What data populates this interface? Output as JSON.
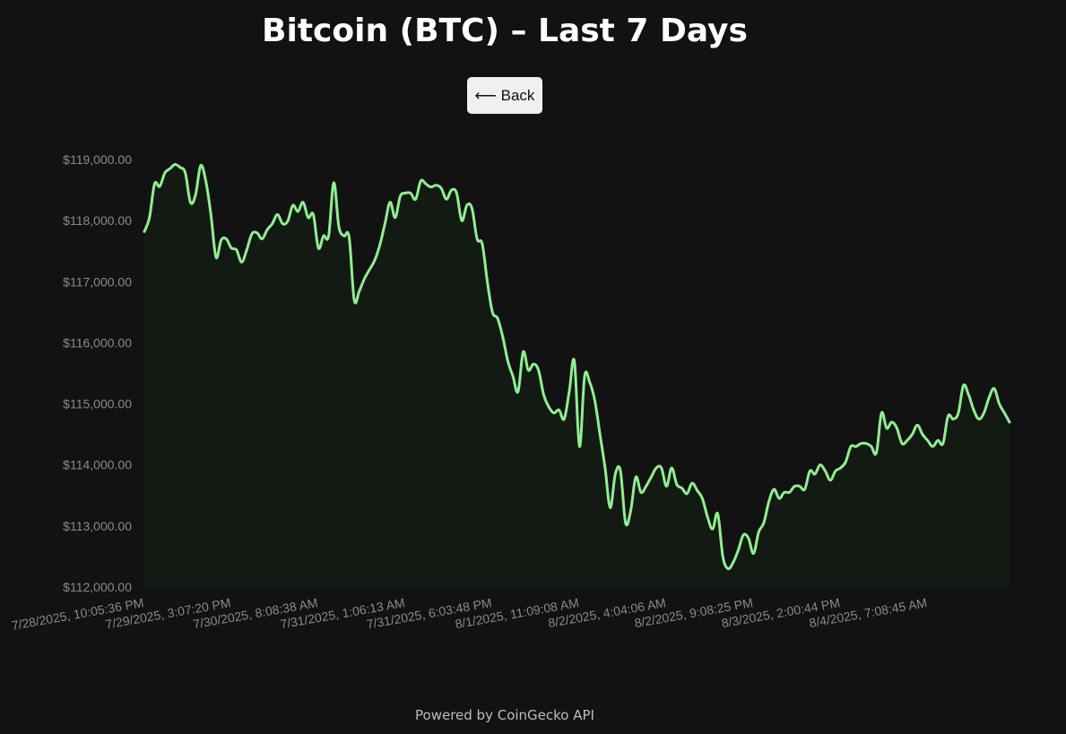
{
  "header": {
    "title": "Bitcoin (BTC) – Last 7 Days",
    "back_label": "⟵ Back"
  },
  "footer": {
    "text": "Powered by CoinGecko API"
  },
  "colors": {
    "background": "#121212",
    "line": "#90ee90",
    "fill": "#131a13",
    "axis_text": "#8a8a8a",
    "button_bg": "#f0f0f0"
  },
  "chart_data": {
    "type": "area",
    "title": "",
    "xlabel": "",
    "ylabel": "",
    "ylim": [
      112000,
      119000
    ],
    "y_ticks": [
      "$112,000.00",
      "$113,000.00",
      "$114,000.00",
      "$115,000.00",
      "$116,000.00",
      "$117,000.00",
      "$118,000.00",
      "$119,000.00"
    ],
    "x_tick_labels": [
      "7/28/2025, 10:05:36 PM",
      "7/29/2025, 3:07:20 PM",
      "7/30/2025, 8:08:38 AM",
      "7/31/2025, 1:06:13 AM",
      "7/31/2025, 6:03:48 PM",
      "8/1/2025, 11:09:08 AM",
      "8/2/2025, 4:04:06 AM",
      "8/2/2025, 9:08:25 PM",
      "8/3/2025, 2:00:44 PM",
      "8/4/2025, 7:08:45 AM"
    ],
    "x_tick_index": [
      0,
      17,
      34,
      51,
      68,
      85,
      102,
      119,
      136,
      153
    ],
    "grid": false,
    "legend": "none",
    "series": [
      {
        "values": [
          117820,
          118050,
          118600,
          118560,
          118780,
          118850,
          118920,
          118870,
          118780,
          118300,
          118420,
          118900,
          118650,
          118100,
          117400,
          117680,
          117700,
          117550,
          117520,
          117320,
          117520,
          117780,
          117800,
          117700,
          117850,
          117950,
          118100,
          117950,
          117990,
          118250,
          118150,
          118300,
          118050,
          118100,
          117550,
          117750,
          117750,
          118620,
          117900,
          117750,
          117730,
          116700,
          116850,
          117050,
          117200,
          117350,
          117600,
          117950,
          118300,
          118050,
          118400,
          118450,
          118450,
          118350,
          118650,
          118600,
          118550,
          118580,
          118530,
          118350,
          118500,
          118450,
          118000,
          118250,
          118200,
          117700,
          117620,
          117000,
          116500,
          116400,
          116100,
          115700,
          115450,
          115200,
          115850,
          115550,
          115650,
          115550,
          115150,
          114950,
          114850,
          114900,
          114750,
          115200,
          115700,
          114300,
          115450,
          115350,
          115050,
          114500,
          113950,
          113300,
          113850,
          113900,
          113050,
          113250,
          113800,
          113550,
          113650,
          113800,
          113950,
          113950,
          113650,
          113950,
          113680,
          113620,
          113530,
          113700,
          113580,
          113450,
          113150,
          112950,
          113200,
          112500,
          112300,
          112400,
          112600,
          112850,
          112800,
          112550,
          112900,
          113050,
          113400,
          113600,
          113450,
          113550,
          113550,
          113650,
          113650,
          113600,
          113900,
          113850,
          114000,
          113900,
          113750,
          113900,
          113950,
          114050,
          114300,
          114300,
          114350,
          114350,
          114300,
          114200,
          114850,
          114600,
          114700,
          114600,
          114350,
          114400,
          114500,
          114650,
          114500,
          114400,
          114300,
          114400,
          114350,
          114800,
          114750,
          114850,
          115300,
          115150,
          114900,
          114750,
          114850,
          115100,
          115250,
          115000,
          114850,
          114700
        ]
      }
    ]
  }
}
